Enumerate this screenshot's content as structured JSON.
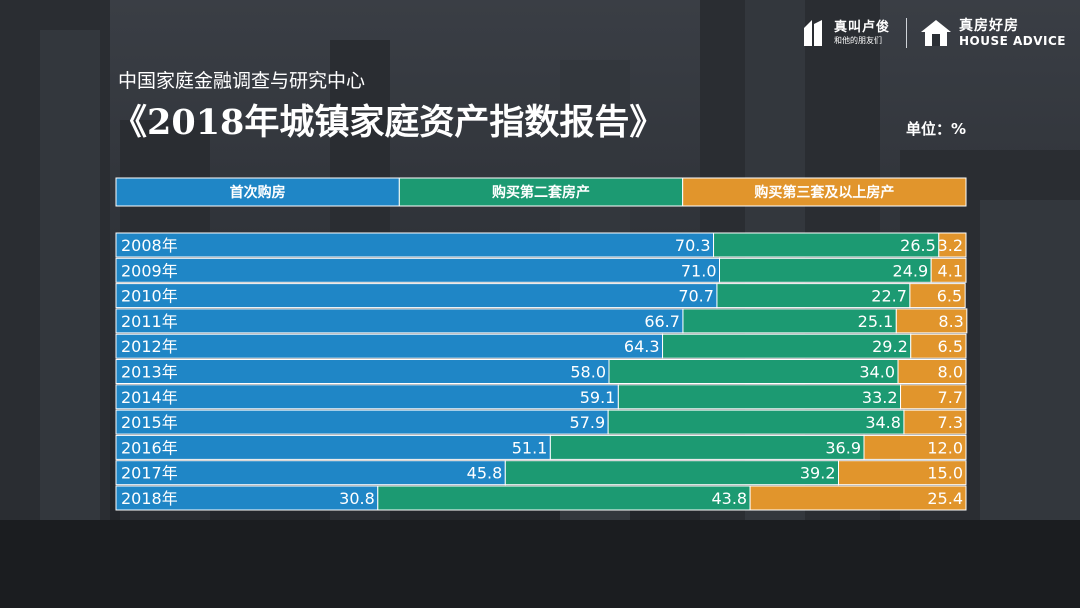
{
  "header": {
    "subtitle": "中国家庭金融调查与研究中心",
    "title": "《2018年城镇家庭资产指数报告》",
    "unit": "单位：%"
  },
  "logos": {
    "brand1_name": "真叫卢俊",
    "brand1_tagline": "和他的朋友们",
    "brand2_name": "真房好房",
    "brand2_en": "HOUSE ADVICE"
  },
  "colors": {
    "first": "#1f86c6",
    "second": "#1c9a72",
    "third": "#e1952c",
    "bar_border": "#ffffff"
  },
  "chart_data": {
    "type": "bar",
    "orientation": "horizontal",
    "stacked": true,
    "title": "《2018年城镇家庭资产指数报告》",
    "unit": "%",
    "categories": [
      "2008年",
      "2009年",
      "2010年",
      "2011年",
      "2012年",
      "2013年",
      "2014年",
      "2015年",
      "2016年",
      "2017年",
      "2018年"
    ],
    "series": [
      {
        "name": "首次购房",
        "values": [
          70.3,
          71.0,
          70.7,
          66.7,
          64.3,
          58.0,
          59.1,
          57.9,
          51.1,
          45.8,
          30.8
        ]
      },
      {
        "name": "购买第二套房产",
        "values": [
          26.5,
          24.9,
          22.7,
          25.1,
          29.2,
          34.0,
          33.2,
          34.8,
          36.9,
          39.2,
          43.8
        ]
      },
      {
        "name": "购买第三套及以上房产",
        "values": [
          3.2,
          4.1,
          6.5,
          8.3,
          6.5,
          8.0,
          7.7,
          7.3,
          12.0,
          15.0,
          25.4
        ]
      }
    ],
    "value_labels": [
      [
        "70.3",
        "71.0",
        "70.7",
        "66.7",
        "64.3",
        "58.0",
        "59.1",
        "57.9",
        "51.1",
        "45.8",
        "30.8"
      ],
      [
        "26.5",
        "24.9",
        "22.7",
        "25.1",
        "29.2",
        "34.0",
        "33.2",
        "34.8",
        "36.9",
        "39.2",
        "43.8"
      ],
      [
        "3.2",
        "4.1",
        "6.5",
        "8.3",
        "6.5",
        "8.0",
        "7.7",
        "7.3",
        "12.0",
        "15.0",
        "25.4"
      ]
    ],
    "xlim": [
      0,
      100
    ],
    "legend": "top"
  }
}
